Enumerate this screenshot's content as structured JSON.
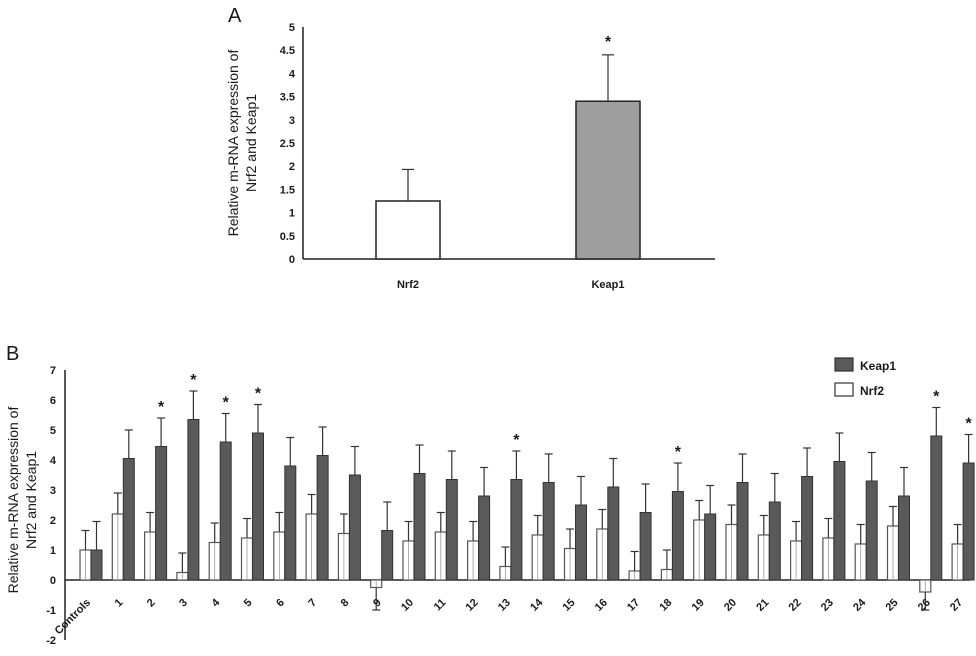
{
  "chart_data": [
    {
      "type": "bar",
      "panel_label": "A",
      "categories": [
        "Nrf2",
        "Keap1"
      ],
      "values": [
        1.25,
        3.4
      ],
      "errors": [
        0.68,
        1.0
      ],
      "significant": [
        false,
        true
      ],
      "bar_colors": [
        "#ffffff",
        "#9e9e9e"
      ],
      "ylabel_lines": [
        "Relative m-RNA expression of",
        "Nrf2 and Keap1"
      ],
      "ylim": [
        0,
        5
      ],
      "yticks": [
        0,
        0.5,
        1,
        1.5,
        2,
        2.5,
        3,
        3.5,
        4,
        4.5,
        5
      ],
      "star_symbol": "*"
    },
    {
      "type": "bar",
      "panel_label": "B",
      "categories": [
        "Controls",
        "1",
        "2",
        "3",
        "4",
        "5",
        "6",
        "7",
        "8",
        "9",
        "10",
        "11",
        "12",
        "13",
        "14",
        "15",
        "16",
        "17",
        "18",
        "19",
        "20",
        "21",
        "22",
        "23",
        "24",
        "25",
        "26",
        "27"
      ],
      "series": [
        {
          "name": "Nrf2",
          "color": "#ffffff",
          "values": [
            1.0,
            2.2,
            1.6,
            0.25,
            1.25,
            1.4,
            1.6,
            2.2,
            1.55,
            -0.25,
            1.3,
            1.6,
            1.3,
            0.45,
            1.5,
            1.05,
            1.7,
            0.3,
            0.35,
            2.0,
            1.85,
            1.5,
            1.3,
            1.4,
            1.2,
            1.8,
            -0.4,
            1.2
          ],
          "errors": [
            0.65,
            0.7,
            0.65,
            0.65,
            0.65,
            0.65,
            0.65,
            0.65,
            0.65,
            0.75,
            0.65,
            0.65,
            0.65,
            0.65,
            0.65,
            0.65,
            0.65,
            0.65,
            0.65,
            0.65,
            0.65,
            0.65,
            0.65,
            0.65,
            0.65,
            0.65,
            0.6,
            0.65
          ]
        },
        {
          "name": "Keap1",
          "color": "#5a5a5a",
          "values": [
            1.0,
            4.05,
            4.45,
            5.35,
            4.6,
            4.9,
            3.8,
            4.15,
            3.5,
            1.65,
            3.55,
            3.35,
            2.8,
            3.35,
            3.25,
            2.5,
            3.1,
            2.25,
            2.95,
            2.2,
            3.25,
            2.6,
            3.45,
            3.95,
            3.3,
            2.8,
            4.8,
            3.9
          ],
          "errors": [
            0.95,
            0.95,
            0.95,
            0.95,
            0.95,
            0.95,
            0.95,
            0.95,
            0.95,
            0.95,
            0.95,
            0.95,
            0.95,
            0.95,
            0.95,
            0.95,
            0.95,
            0.95,
            0.95,
            0.95,
            0.95,
            0.95,
            0.95,
            0.95,
            0.95,
            0.95,
            0.95,
            0.95
          ]
        }
      ],
      "significant": [
        "2",
        "3",
        "4",
        "5",
        "13",
        "18",
        "26",
        "27"
      ],
      "ylabel_lines": [
        "Relative m-RNA expression of",
        "Nrf2 and Keap1"
      ],
      "ylim": [
        -2,
        7
      ],
      "yticks": [
        -2,
        -1,
        0,
        1,
        2,
        3,
        4,
        5,
        6,
        7
      ],
      "legend": {
        "placement": "top-right",
        "entries": [
          "Keap1",
          "Nrf2"
        ]
      },
      "star_symbol": "*"
    }
  ]
}
